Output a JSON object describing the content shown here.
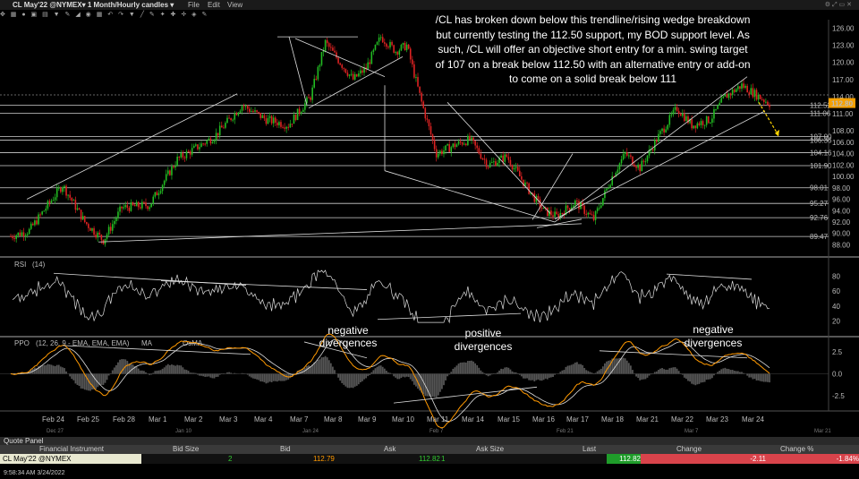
{
  "window": {
    "title": "CL May'22 @NYMEX▾  1 Month/Hourly candles ▾",
    "menu": [
      "File",
      "Edit",
      "View"
    ]
  },
  "annotation": "/CL has broken down below this trendline/rising wedge breakdown but currently testing the 112.50 support, my BOD support level. As such, /CL will offer an objective short entry for a min. swing target of 107 on a break below 112.50 with an alternative entry or add-on to come on a solid break below 111",
  "price_axis": [
    "126.00",
    "123.00",
    "120.00",
    "117.00",
    "114.00",
    "111.00",
    "108.00",
    "106.00",
    "104.00",
    "102.00",
    "100.00",
    "98.00",
    "96.00",
    "94.00",
    "92.00",
    "90.00",
    "88.00"
  ],
  "level_labels": [
    "112.52",
    "111.06",
    "107.00",
    "106.36",
    "104.16",
    "101.90",
    "98.01",
    "95.27",
    "92.76",
    "89.47"
  ],
  "last_price": "112.80",
  "rsi": {
    "title": "RSI",
    "param": "(14)",
    "ticks": [
      "80",
      "60",
      "40",
      "20"
    ]
  },
  "ppo": {
    "title": "PPO",
    "params": "(12, 26, 9 - EMA, EMA, EMA)",
    "legend": [
      "MA",
      "OsMA"
    ],
    "ticks": [
      "2.5",
      "0.0",
      "-2.5"
    ]
  },
  "labels": {
    "neg1": [
      "negative",
      "divergences"
    ],
    "pos": [
      "positive",
      "divergences"
    ],
    "neg2": [
      "negative",
      "divergences"
    ]
  },
  "x_axis": [
    "Feb 24",
    "Feb 25",
    "Feb 28",
    "Mar 1",
    "Mar 2",
    "Mar 3",
    "Mar 4",
    "Mar 7",
    "Mar 8",
    "Mar 9",
    "Mar 10",
    "Mar 11",
    "Mar 14",
    "Mar 15",
    "Mar 16",
    "Mar 17",
    "Mar 18",
    "Mar 21",
    "Mar 22",
    "Mar 23",
    "Mar 24"
  ],
  "x_axis_overview": [
    "Dec 27",
    "Jan 10",
    "Jan 24",
    "Feb 7",
    "Feb 21",
    "Mar 7",
    "Mar 21"
  ],
  "quote_panel": {
    "title": "Quote Panel",
    "columns": [
      "Financial Instrument",
      "Bid Size",
      "Bid",
      "Ask",
      "Ask Size",
      "Last",
      "Change",
      "Change %"
    ],
    "row": {
      "instrument": "CL May'22 @NYMEX",
      "bid_size": "2",
      "bid": "112.79",
      "ask": "112.82",
      "ask_size": "1",
      "last": "112.82",
      "change": "-2.11",
      "change_pct": "-1.84%"
    }
  },
  "status_time": "9:58:34 AM 3/24/2022",
  "colors": {
    "up": "#22bb22",
    "down": "#dd2222",
    "ppo_orange": "#ff9900",
    "change_bg": "#d9434b",
    "last_bg": "#1f9c2a"
  }
}
